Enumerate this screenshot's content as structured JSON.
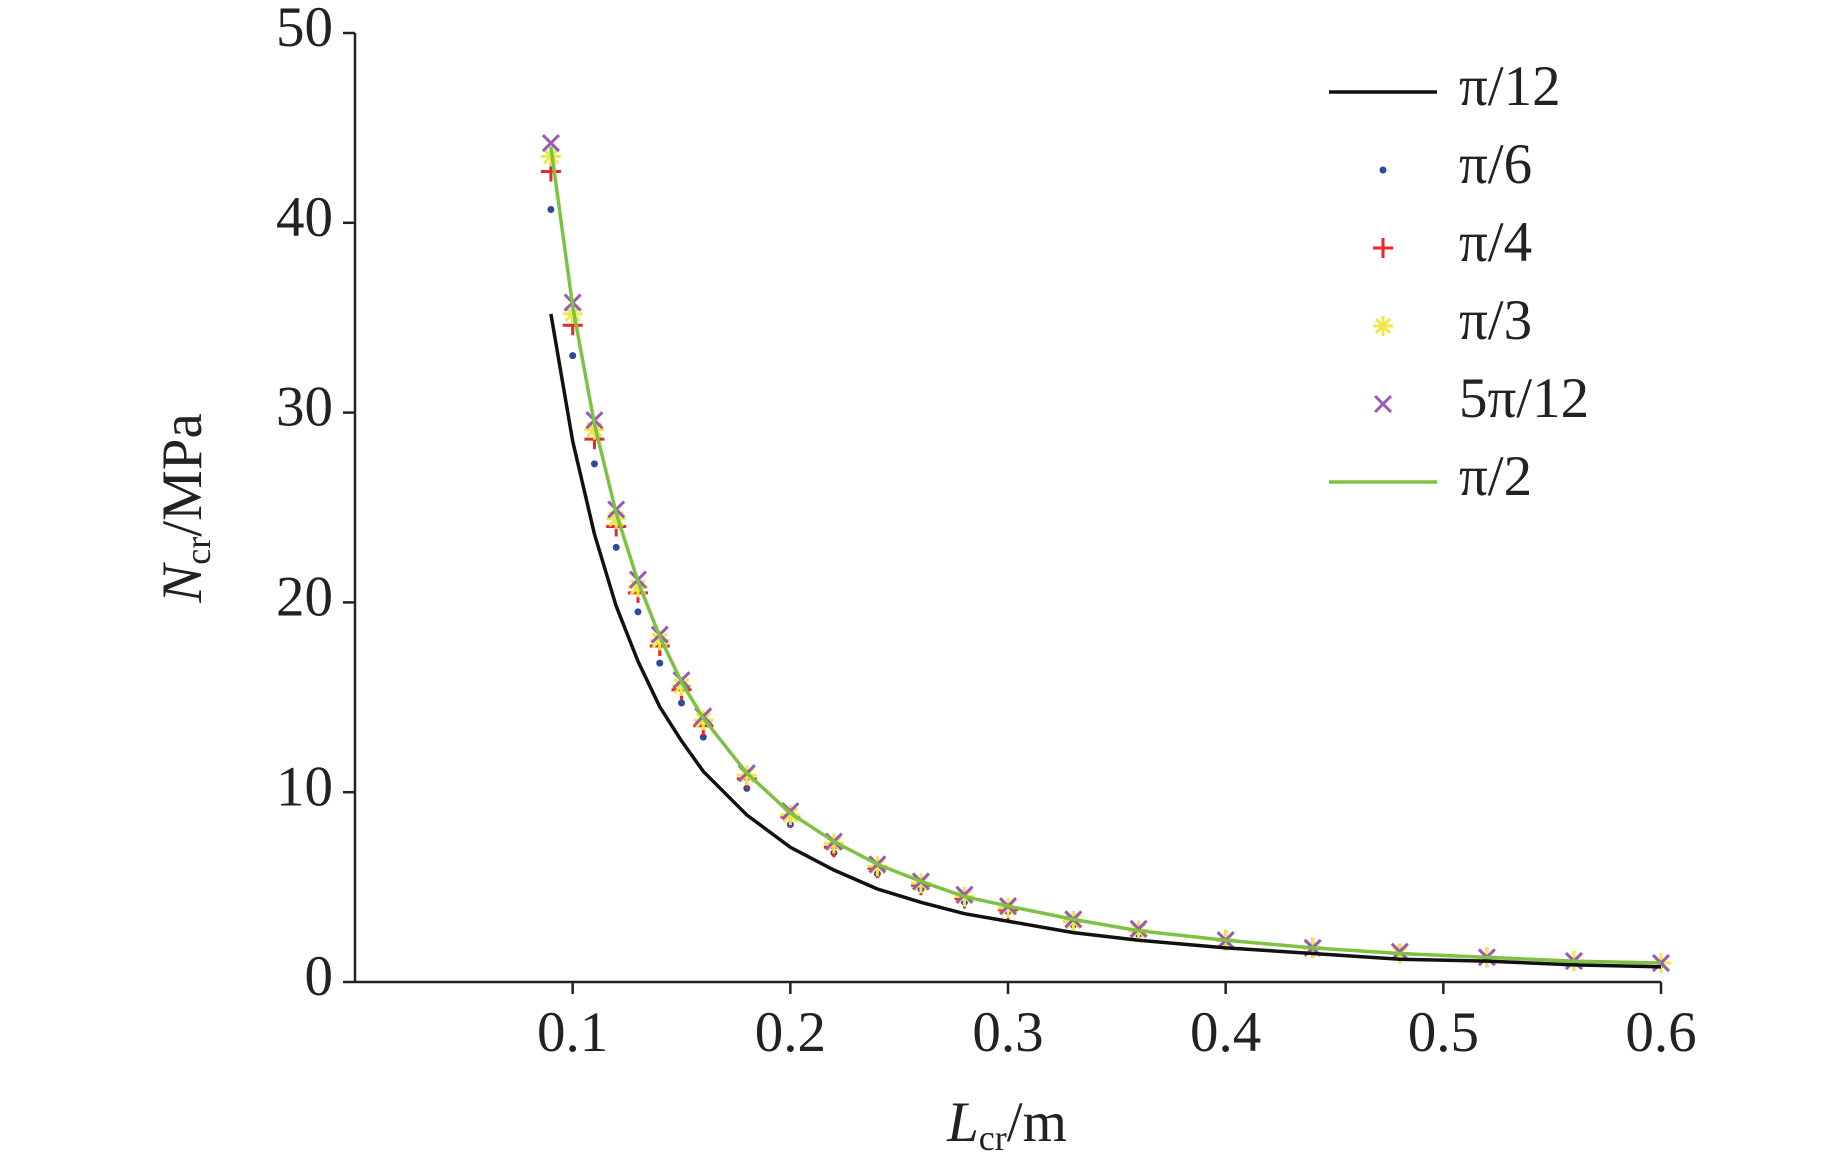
{
  "chart_data": {
    "type": "line",
    "xlabel": {
      "symbol": "L",
      "subscript": "cr",
      "unit": "/m"
    },
    "ylabel": {
      "symbol": "N",
      "subscript": "cr",
      "unit": "/MPa"
    },
    "x": [
      0.09,
      0.1,
      0.11,
      0.12,
      0.13,
      0.14,
      0.15,
      0.16,
      0.18,
      0.2,
      0.22,
      0.24,
      0.26,
      0.28,
      0.3,
      0.33,
      0.36,
      0.4,
      0.44,
      0.48,
      0.52,
      0.56,
      0.6
    ],
    "xlim": [
      0,
      0.6
    ],
    "xticks": [
      0.1,
      0.2,
      0.3,
      0.4,
      0.5,
      0.6
    ],
    "ylim": [
      0,
      50
    ],
    "yticks": [
      0,
      10,
      20,
      30,
      40,
      50
    ],
    "legend": "upper right",
    "series": [
      {
        "name": "π/12",
        "color": "#111111",
        "marker": "line",
        "values": [
          35.2,
          28.5,
          23.6,
          19.8,
          16.9,
          14.5,
          12.7,
          11.1,
          8.8,
          7.1,
          5.9,
          4.9,
          4.2,
          3.6,
          3.2,
          2.6,
          2.2,
          1.8,
          1.5,
          1.2,
          1.1,
          0.9,
          0.8
        ]
      },
      {
        "name": "π/6",
        "color": "#2e4a9e",
        "marker": "dot",
        "values": [
          40.7,
          33.0,
          27.3,
          22.9,
          19.5,
          16.8,
          14.7,
          12.9,
          10.2,
          8.3,
          6.8,
          5.7,
          4.9,
          4.2,
          3.7,
          3.0,
          2.5,
          2.1,
          1.7,
          1.4,
          1.2,
          1.1,
          0.9
        ]
      },
      {
        "name": "π/4",
        "color": "#e8262b",
        "marker": "plus",
        "values": [
          42.7,
          34.6,
          28.6,
          24.0,
          20.5,
          17.7,
          15.4,
          13.5,
          10.7,
          8.7,
          7.1,
          6.0,
          5.1,
          4.4,
          3.8,
          3.2,
          2.7,
          2.2,
          1.8,
          1.5,
          1.3,
          1.1,
          1.0
        ]
      },
      {
        "name": "π/3",
        "color": "#f0e84a",
        "marker": "star",
        "values": [
          43.5,
          35.2,
          29.1,
          24.4,
          20.8,
          18.0,
          15.6,
          13.8,
          10.9,
          8.8,
          7.3,
          6.1,
          5.2,
          4.5,
          3.9,
          3.2,
          2.7,
          2.2,
          1.8,
          1.5,
          1.3,
          1.1,
          1.0
        ]
      },
      {
        "name": "5π/12",
        "color": "#9b59b6",
        "marker": "cross",
        "values": [
          44.2,
          35.8,
          29.6,
          24.9,
          21.2,
          18.3,
          15.9,
          14.0,
          11.0,
          9.0,
          7.4,
          6.2,
          5.3,
          4.6,
          4.0,
          3.3,
          2.8,
          2.2,
          1.8,
          1.6,
          1.3,
          1.1,
          1.0
        ]
      },
      {
        "name": "π/2",
        "color": "#7dc242",
        "marker": "line",
        "values": [
          44.0,
          35.6,
          29.4,
          24.7,
          21.1,
          18.2,
          15.8,
          13.9,
          11.0,
          8.9,
          7.4,
          6.2,
          5.3,
          4.5,
          4.0,
          3.3,
          2.7,
          2.2,
          1.8,
          1.5,
          1.3,
          1.1,
          1.0
        ]
      }
    ]
  }
}
